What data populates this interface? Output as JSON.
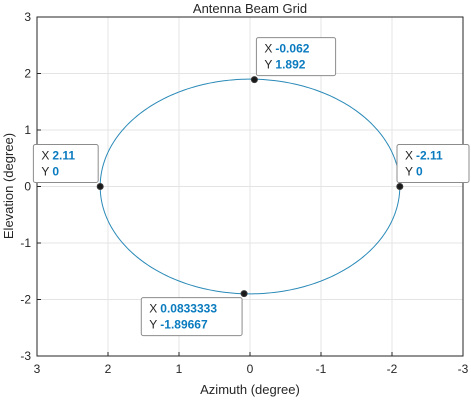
{
  "chart_data": {
    "type": "line",
    "title": "Antenna Beam Grid",
    "xlabel": "Azimuth (degree)",
    "ylabel": "Elevation (degree)",
    "xlim": [
      3,
      -3
    ],
    "ylim": [
      -3,
      3
    ],
    "x_reversed": true,
    "grid": true,
    "x_ticks": [
      3,
      2,
      1,
      0,
      -1,
      -2,
      -3
    ],
    "y_ticks": [
      3,
      2,
      1,
      0,
      -1,
      -2,
      -3
    ],
    "series": [
      {
        "shape": "ellipse",
        "center": [
          0,
          0
        ],
        "x_radius": 2.11,
        "y_radius": 1.9,
        "color": "#2a8ab8"
      }
    ],
    "datatips": [
      {
        "x": "-0.062",
        "y": "1.892",
        "x_key": "X",
        "y_key": "Y",
        "placement": "upper-right"
      },
      {
        "x": "2.11",
        "y": "0",
        "x_key": "X",
        "y_key": "Y",
        "placement": "upper-left"
      },
      {
        "x": "-2.11",
        "y": "0",
        "x_key": "X",
        "y_key": "Y",
        "placement": "upper-right"
      },
      {
        "x": "0.0833333",
        "y": "-1.89667",
        "x_key": "X",
        "y_key": "Y",
        "placement": "lower-left"
      }
    ]
  }
}
